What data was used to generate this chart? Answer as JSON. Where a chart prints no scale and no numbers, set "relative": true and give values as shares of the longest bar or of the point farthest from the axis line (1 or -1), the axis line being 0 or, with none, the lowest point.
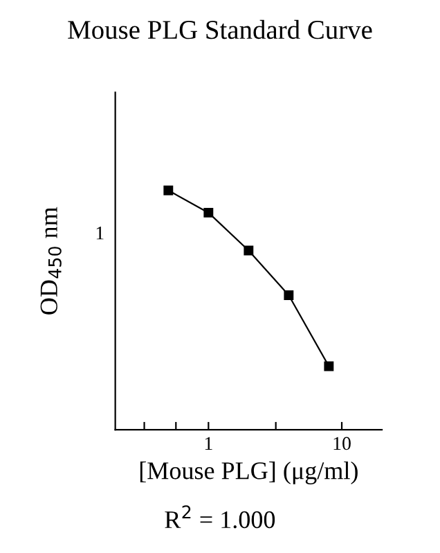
{
  "chart_data": {
    "type": "line",
    "title": "Mouse PLG Standard Curve",
    "xlabel": "[Mouse PLG] (μg/ml)",
    "ylabel": "OD$_{450}$ nm",
    "annotations": [
      "1",
      "R$^{2}$ = 1.000"
    ],
    "x": [
      0.5,
      1,
      2,
      4,
      8
    ],
    "series": [
      {
        "color": "#000000",
        "values": [
          1,
          0.907,
          0.749,
          0.562,
          0.265
        ]
      }
    ],
    "relative": true,
    "log": "x",
    "marker": "square",
    "line_style": "solid",
    "grid": false,
    "legend": false,
    "xlim": [
      0.2,
      20
    ],
    "xticks": [
      {
        "value": 0.33,
        "label": null
      },
      {
        "value": 0.57,
        "label": null
      },
      1,
      {
        "value": 3.2,
        "label": null
      },
      10
    ]
  }
}
